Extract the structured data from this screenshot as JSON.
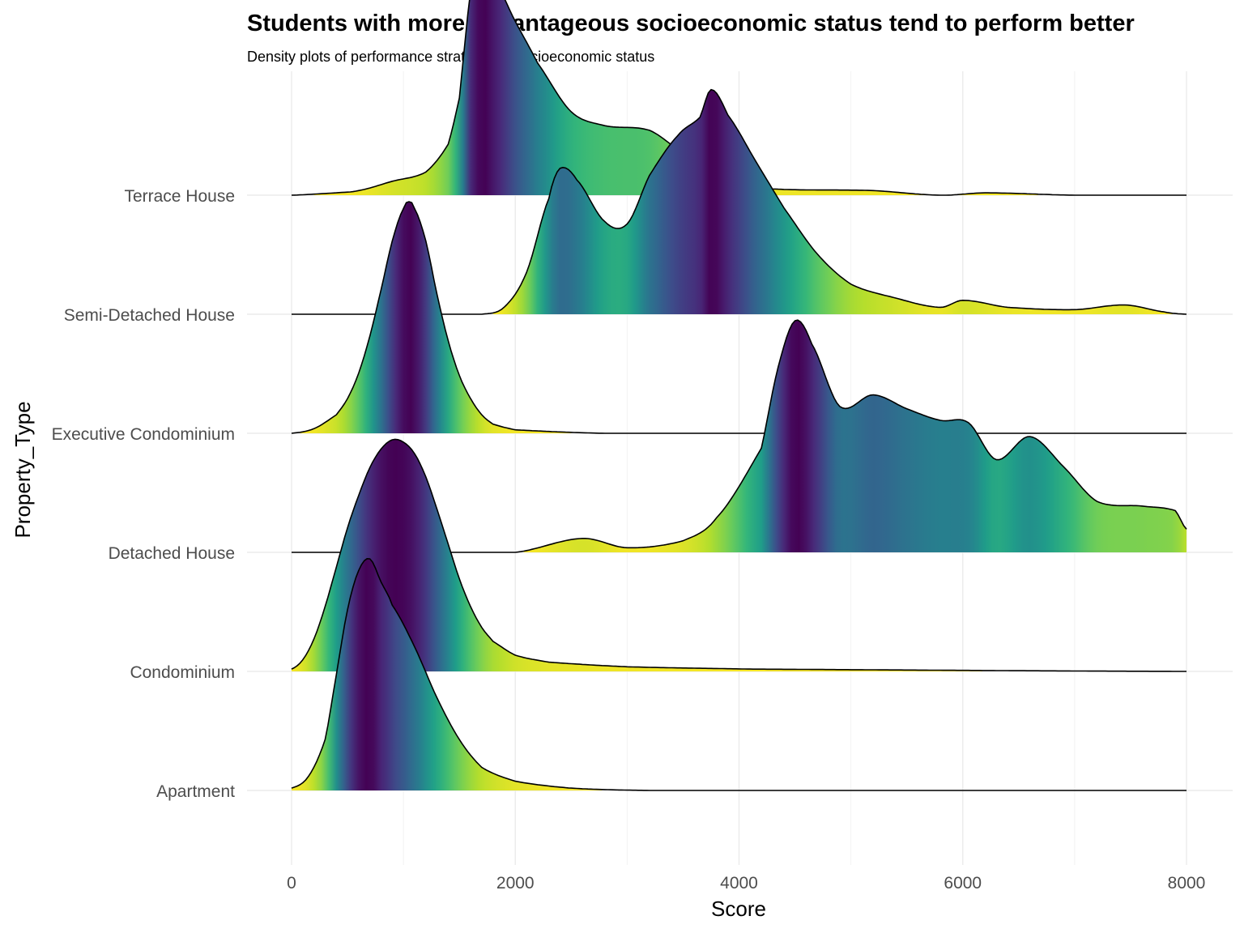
{
  "chart_data": {
    "type": "ridgeline-density",
    "title": "Students with more advantageous socioeconomic status tend to perform better",
    "subtitle": "Density plots of performance stratified by socioeconomic status",
    "xlabel": "Score",
    "ylabel": "Property_Type",
    "xlim": [
      0,
      8000
    ],
    "x_ticks": [
      0,
      2000,
      4000,
      6000,
      8000
    ],
    "x_tick_labels": [
      "0",
      "2000",
      "4000",
      "6000",
      "8000"
    ],
    "grid": true,
    "fill_colormap": "viridis (yellow at tails, dark purple at the densest score)",
    "categories": [
      "Apartment",
      "Condominium",
      "Detached House",
      "Executive Condominium",
      "Semi-Detached House",
      "Terrace House"
    ],
    "series": [
      {
        "category": "Apartment",
        "range": [
          0,
          8000
        ],
        "x": [
          0,
          150,
          300,
          400,
          500,
          600,
          700,
          800,
          900,
          1100,
          1300,
          1500,
          1700,
          2000,
          2500,
          3200,
          8000
        ],
        "density": [
          0.01,
          0.06,
          0.22,
          0.5,
          0.78,
          0.95,
          1.0,
          0.9,
          0.8,
          0.62,
          0.4,
          0.22,
          0.1,
          0.04,
          0.01,
          0.0,
          0.0
        ]
      },
      {
        "category": "Condominium",
        "range": [
          0,
          8000
        ],
        "x": [
          0,
          100,
          200,
          300,
          400,
          500,
          600,
          700,
          800,
          900,
          1000,
          1100,
          1200,
          1300,
          1400,
          1500,
          1600,
          1700,
          1800,
          2000,
          2300,
          3000,
          4100,
          8000
        ],
        "density": [
          0.01,
          0.05,
          0.14,
          0.28,
          0.45,
          0.62,
          0.76,
          0.88,
          0.96,
          1.0,
          0.99,
          0.94,
          0.84,
          0.7,
          0.55,
          0.4,
          0.28,
          0.19,
          0.13,
          0.07,
          0.04,
          0.02,
          0.01,
          0.0
        ]
      },
      {
        "category": "Detached House",
        "range": [
          0,
          8000
        ],
        "x": [
          0,
          2000,
          2600,
          3000,
          3500,
          3800,
          4200,
          4350,
          4500,
          4650,
          4900,
          5200,
          5500,
          5800,
          6050,
          6300,
          6600,
          6900,
          7200,
          7600,
          7900,
          8000
        ],
        "density": [
          0.0,
          0.0,
          0.06,
          0.02,
          0.05,
          0.15,
          0.45,
          0.8,
          1.0,
          0.9,
          0.63,
          0.68,
          0.62,
          0.57,
          0.56,
          0.4,
          0.5,
          0.37,
          0.22,
          0.2,
          0.18,
          0.1
        ]
      },
      {
        "category": "Executive Condominium",
        "range": [
          0,
          8000
        ],
        "x": [
          0,
          200,
          400,
          500,
          600,
          700,
          800,
          900,
          1000,
          1050,
          1100,
          1200,
          1300,
          1400,
          1500,
          1600,
          1700,
          1800,
          2000,
          2800,
          8000
        ],
        "density": [
          0.0,
          0.02,
          0.08,
          0.15,
          0.26,
          0.42,
          0.62,
          0.83,
          0.97,
          1.0,
          0.97,
          0.83,
          0.6,
          0.4,
          0.25,
          0.15,
          0.08,
          0.04,
          0.015,
          0.0,
          0.0
        ]
      },
      {
        "category": "Semi-Detached House",
        "range": [
          0,
          8000
        ],
        "x": [
          0,
          1700,
          1900,
          2100,
          2300,
          2400,
          2550,
          2800,
          3000,
          3200,
          3450,
          3650,
          3750,
          3900,
          4150,
          4400,
          4700,
          5000,
          5400,
          5800,
          6000,
          6400,
          7000,
          7450,
          7800,
          8000
        ],
        "density": [
          0.0,
          0.0,
          0.03,
          0.18,
          0.5,
          0.63,
          0.58,
          0.4,
          0.39,
          0.6,
          0.77,
          0.85,
          0.97,
          0.86,
          0.66,
          0.46,
          0.26,
          0.13,
          0.07,
          0.03,
          0.06,
          0.03,
          0.02,
          0.04,
          0.01,
          0.0
        ]
      },
      {
        "category": "Terrace House",
        "range": [
          0,
          8000
        ],
        "x": [
          0,
          400,
          600,
          900,
          1200,
          1400,
          1500,
          1550,
          1600,
          1700,
          1800,
          2000,
          2200,
          2500,
          2800,
          3200,
          3500,
          3800,
          4200,
          5200,
          5800,
          6200,
          7000,
          8000
        ],
        "density": [
          0.0,
          0.01,
          0.02,
          0.06,
          0.1,
          0.22,
          0.42,
          0.66,
          0.88,
          1.0,
          0.94,
          0.75,
          0.57,
          0.36,
          0.3,
          0.28,
          0.18,
          0.09,
          0.03,
          0.02,
          0.0,
          0.01,
          0.0,
          0.0
        ]
      }
    ]
  }
}
